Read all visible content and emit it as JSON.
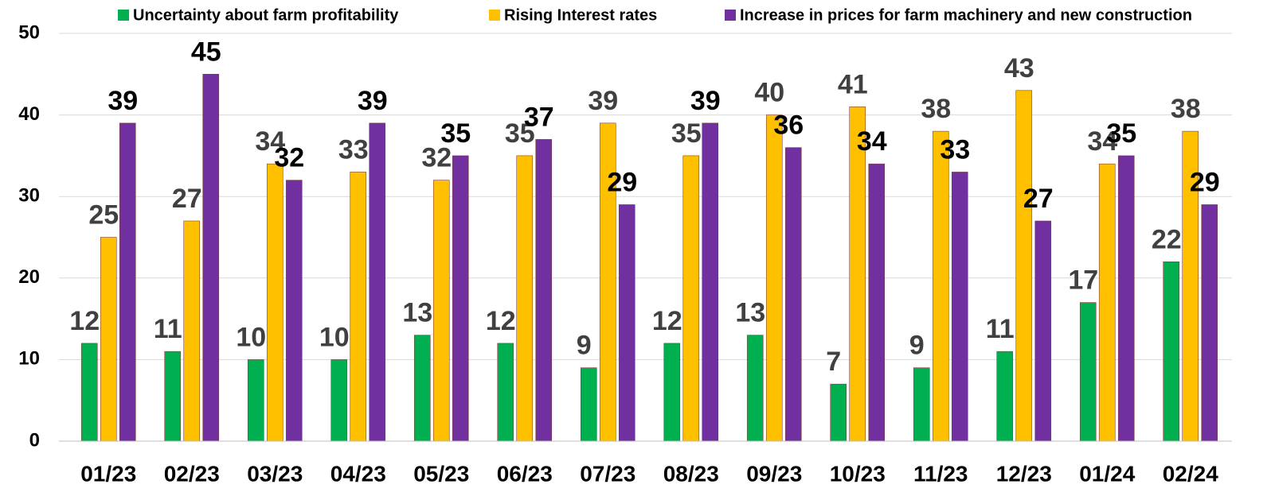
{
  "chart_data": {
    "type": "bar",
    "categories": [
      "01/23",
      "02/23",
      "03/23",
      "04/23",
      "05/23",
      "06/23",
      "07/23",
      "08/23",
      "09/23",
      "10/23",
      "11/23",
      "12/23",
      "01/24",
      "02/24"
    ],
    "series": [
      {
        "name": "Uncertainty about farm profitability",
        "color": "#00b050",
        "label_color": "#404040",
        "values": [
          12,
          11,
          10,
          10,
          13,
          12,
          9,
          12,
          13,
          7,
          9,
          11,
          17,
          22
        ]
      },
      {
        "name": "Rising Interest rates",
        "color": "#ffc000",
        "label_color": "#404040",
        "values": [
          25,
          27,
          34,
          33,
          32,
          35,
          39,
          35,
          40,
          41,
          38,
          43,
          34,
          38
        ]
      },
      {
        "name": "Increase in prices for farm machinery and new construction",
        "color": "#7030a0",
        "label_color": "#000000",
        "values": [
          39,
          45,
          32,
          39,
          35,
          37,
          29,
          39,
          36,
          34,
          33,
          27,
          35,
          29
        ]
      }
    ],
    "ylim": [
      0,
      50
    ],
    "yticks": [
      0,
      10,
      20,
      30,
      40,
      50
    ],
    "grid": true,
    "legend": "top"
  }
}
